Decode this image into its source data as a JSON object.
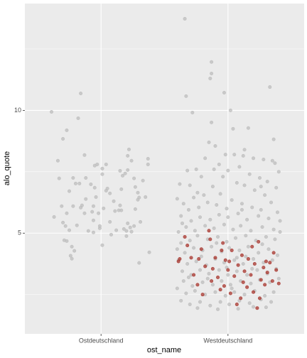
{
  "chart_data": {
    "type": "scatter",
    "xlabel": "ost_name",
    "ylabel": "alo_quote",
    "xlim": [
      0.4,
      2.6
    ],
    "xticks": [
      {
        "value": 1,
        "label": "Ostdeutschland"
      },
      {
        "value": 2,
        "label": "Westdeutschland"
      }
    ],
    "ylim": [
      0.9,
      14.35
    ],
    "yticks": [
      5,
      10
    ],
    "minor_yticks": [
      2.5,
      7.5,
      12.5
    ],
    "grid": true,
    "series": [
      {
        "color": "#bdbdbd",
        "x": [
          0.61,
          0.66,
          0.67,
          0.73,
          0.7,
          0.84,
          0.82,
          0.87,
          0.63,
          0.7,
          0.72,
          0.71,
          0.73,
          0.77,
          0.76,
          0.77,
          0.78,
          0.8,
          0.83,
          0.85,
          0.75,
          0.78,
          0.88,
          0.92,
          0.95,
          0.95,
          0.97,
          0.94,
          0.94,
          0.93,
          0.94,
          0.98,
          0.96,
          0.99,
          1.01,
          1.04,
          0.99,
          1.05,
          1.07,
          1.07,
          1.08,
          1.01,
          1.04,
          1.1,
          1.11,
          1.12,
          1.14,
          1.15,
          1.16,
          1.18,
          1.2,
          1.17,
          1.19,
          1.21,
          1.22,
          1.21,
          1.24,
          1.27,
          1.29,
          1.26,
          1.27,
          1.29,
          1.3,
          1.26,
          1.24,
          1.31,
          1.33,
          1.37,
          1.37,
          1.35,
          1.38,
          1.3,
          1.21,
          1.15,
          1.16,
          0.87,
          0.84,
          0.81,
          0.75,
          0.69,
          1.02,
          0.9,
          1.23,
          1.2,
          0.79,
          1.01,
          0.88,
          0.73
        ],
        "values": [
          9.94,
          7.95,
          7.23,
          9.19,
          8.84,
          10.69,
          9.68,
          8.18,
          5.66,
          5.43,
          5.29,
          4.71,
          4.68,
          4.45,
          4.08,
          3.96,
          6.1,
          7.02,
          7.02,
          6.13,
          6.71,
          7.25,
          7.25,
          6.99,
          7.75,
          6.85,
          7.8,
          5.03,
          5.52,
          5.87,
          6.1,
          5.81,
          6.47,
          5.2,
          4.51,
          6.73,
          5.29,
          6.82,
          5.46,
          6.62,
          4.94,
          7.63,
          7.8,
          6.3,
          5.9,
          5.12,
          5.93,
          6.13,
          6.79,
          5.17,
          5.09,
          7.34,
          7.43,
          7.57,
          8.41,
          8.15,
          7.95,
          6.88,
          6.65,
          7.23,
          5.98,
          6.36,
          6.45,
          5.29,
          5.06,
          5.46,
          7.14,
          8.03,
          7.8,
          6.47,
          4.22,
          3.79,
          5.4,
          7.54,
          5.93,
          5.81,
          6.04,
          5.32,
          5.12,
          6.1,
          6.01,
          5.09,
          5.23,
          4.88,
          4.28,
          7.4,
          6.39,
          5.81
        ]
      },
      {
        "color": "#bdbdbd",
        "x": [
          1.66,
          1.87,
          1.87,
          1.86,
          1.67,
          1.97,
          2.33,
          1.72,
          2.02,
          2.36,
          2.16,
          2.04,
          1.87,
          1.85,
          1.9,
          1.98,
          2.05,
          2.12,
          2.2,
          2.28,
          2.35,
          1.82,
          1.75,
          1.68,
          1.62,
          1.7,
          1.79,
          1.93,
          2.0,
          2.09,
          2.17,
          2.25,
          2.31,
          2.4,
          2.38,
          2.29,
          2.21,
          2.13,
          2.07,
          1.96,
          1.88,
          1.81,
          1.73,
          1.65,
          1.6,
          1.69,
          1.77,
          1.84,
          1.91,
          1.99,
          2.03,
          2.11,
          2.19,
          2.26,
          2.34,
          2.39,
          2.32,
          2.24,
          2.15,
          2.08,
          2.0,
          1.93,
          1.86,
          1.78,
          1.71,
          1.63,
          1.61,
          1.67,
          1.74,
          1.82,
          1.89,
          1.97,
          2.04,
          2.1,
          2.18,
          2.27,
          2.36,
          2.41,
          2.37,
          2.3,
          2.22,
          2.14,
          2.06,
          1.99,
          1.92,
          1.84,
          1.76,
          1.7,
          1.63,
          1.6,
          1.66,
          1.73,
          1.8,
          1.87,
          1.95,
          2.01,
          2.09,
          2.16,
          2.24,
          2.32,
          2.39,
          2.35,
          2.28,
          2.2,
          2.12,
          2.05,
          1.97,
          1.9,
          1.83,
          1.75,
          1.68,
          1.61,
          1.64,
          1.71,
          1.78,
          1.85,
          1.93,
          2.0,
          2.07,
          2.15,
          2.23,
          2.31,
          2.38,
          2.4,
          2.33,
          2.25,
          2.18,
          2.1,
          2.02,
          1.95,
          1.88,
          1.8,
          1.72,
          1.65,
          1.6,
          1.67,
          1.74,
          1.82,
          1.9,
          1.98,
          2.05,
          2.13,
          2.21,
          2.29,
          2.36,
          2.34,
          2.26,
          2.17,
          2.09,
          2.01,
          1.94,
          1.86,
          1.78,
          1.7,
          1.63,
          1.76,
          1.92,
          2.08,
          2.2,
          2.3,
          1.84,
          1.99,
          2.14,
          2.27,
          1.79,
          1.69,
          2.03,
          2.19,
          1.91,
          2.11,
          1.76,
          2.26,
          1.94,
          2.37,
          1.89,
          2.13,
          1.64,
          2.41,
          2.07
        ],
        "values": [
          13.73,
          11.97,
          11.5,
          11.3,
          10.58,
          10.72,
          10.95,
          9.91,
          10.0,
          8.82,
          9.28,
          9.25,
          9.51,
          8.7,
          8.55,
          8.2,
          8.2,
          8.15,
          8.05,
          8.0,
          7.95,
          8.05,
          7.6,
          7.55,
          7.0,
          6.95,
          7.3,
          7.8,
          7.55,
          7.7,
          7.4,
          7.25,
          7.1,
          7.5,
          6.85,
          6.55,
          6.75,
          6.95,
          7.05,
          7.3,
          6.9,
          6.55,
          6.45,
          6.2,
          6.4,
          5.95,
          6.05,
          6.25,
          6.15,
          6.0,
          6.35,
          6.2,
          6.05,
          5.95,
          6.25,
          5.85,
          5.6,
          5.7,
          5.55,
          5.8,
          5.65,
          5.75,
          5.55,
          5.65,
          5.5,
          5.7,
          5.05,
          5.25,
          5.1,
          5.3,
          5.2,
          5.35,
          5.15,
          5.3,
          5.1,
          5.25,
          5.15,
          5.05,
          4.75,
          4.85,
          4.7,
          4.9,
          4.8,
          4.65,
          4.85,
          4.75,
          4.9,
          4.7,
          4.6,
          4.35,
          4.2,
          4.4,
          4.3,
          4.45,
          4.25,
          4.4,
          4.3,
          4.45,
          4.2,
          4.35,
          4.1,
          3.9,
          3.8,
          3.95,
          3.75,
          3.9,
          3.8,
          3.95,
          3.7,
          3.85,
          3.75,
          3.9,
          3.45,
          3.3,
          3.5,
          3.35,
          3.5,
          3.3,
          3.45,
          3.3,
          3.5,
          3.35,
          3.55,
          3.15,
          3.0,
          3.1,
          2.95,
          3.05,
          2.9,
          3.05,
          2.9,
          3.0,
          2.85,
          3.05,
          2.75,
          2.55,
          2.65,
          2.5,
          2.6,
          2.45,
          2.6,
          2.5,
          2.65,
          2.45,
          2.6,
          2.2,
          2.3,
          2.15,
          2.25,
          2.1,
          2.2,
          2.05,
          2.2,
          2.1,
          2.25,
          1.95,
          1.9,
          1.92,
          2.0,
          1.98,
          3.15,
          3.6,
          4.05,
          4.55,
          4.05,
          3.2,
          2.75,
          3.55,
          4.6,
          5.95,
          6.65,
          6.9,
          6.6,
          7.85,
          7.6,
          8.4,
          5.4,
          5.5,
          4.0
        ]
      },
      {
        "color": "#a8352e",
        "x": [
          1.66,
          1.62,
          1.61,
          1.68,
          1.73,
          1.76,
          1.79,
          1.82,
          1.85,
          1.86,
          1.88,
          1.9,
          1.92,
          1.94,
          1.96,
          1.98,
          2.0,
          2.02,
          2.03,
          2.05,
          2.07,
          2.08,
          2.1,
          2.11,
          2.13,
          2.15,
          2.16,
          2.18,
          2.2,
          2.21,
          2.23,
          2.24,
          2.26,
          2.28,
          2.29,
          2.31,
          2.33,
          2.35,
          2.36,
          2.38,
          1.71,
          1.8,
          1.87,
          1.95,
          2.01,
          2.12,
          2.19,
          2.25,
          2.3,
          2.4,
          1.77,
          1.97
        ],
        "values": [
          4.85,
          3.95,
          3.85,
          4.5,
          3.3,
          2.9,
          4.35,
          3.65,
          5.1,
          4.75,
          3.55,
          4.0,
          3.2,
          2.7,
          4.6,
          3.9,
          3.5,
          2.55,
          4.3,
          3.25,
          2.1,
          3.7,
          2.35,
          4.1,
          3.45,
          2.8,
          3.95,
          3.3,
          2.6,
          3.75,
          1.95,
          4.65,
          3.1,
          3.6,
          2.9,
          3.4,
          3.8,
          3.05,
          4.2,
          3.5,
          4.0,
          2.5,
          3.05,
          4.3,
          3.85,
          3.0,
          4.45,
          2.35,
          3.85,
          2.95,
          3.95,
          2.85
        ]
      }
    ]
  }
}
